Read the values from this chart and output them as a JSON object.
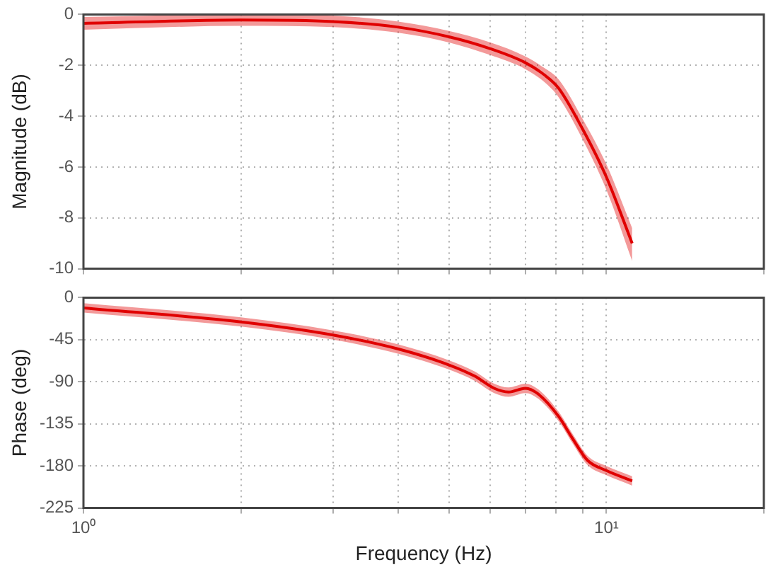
{
  "chart_data": [
    {
      "type": "line",
      "ylabel": "Magnitude (dB)",
      "x": [
        1,
        2,
        3,
        4,
        5,
        6,
        7,
        7.6,
        8.1,
        9,
        10,
        11.2
      ],
      "series": [
        {
          "color": "#e00000",
          "values": [
            -0.35,
            -0.22,
            -0.28,
            -0.5,
            -0.88,
            -1.35,
            -1.9,
            -2.37,
            -2.9,
            -4.5,
            -6.4,
            -9.0
          ],
          "lower": [
            -0.6,
            -0.45,
            -0.5,
            -0.72,
            -1.1,
            -1.6,
            -2.15,
            -2.65,
            -3.25,
            -4.9,
            -6.9,
            -9.7
          ],
          "upper": [
            -0.1,
            0.0,
            -0.05,
            -0.28,
            -0.65,
            -1.1,
            -1.65,
            -2.1,
            -2.55,
            -4.1,
            -5.9,
            -8.4
          ]
        }
      ],
      "log": "x",
      "xlim": [
        1,
        20
      ],
      "xticks": [
        {
          "value": 1,
          "label": null
        },
        {
          "value": 2,
          "label": null
        },
        {
          "value": 3,
          "label": null
        },
        {
          "value": 4,
          "label": null
        },
        {
          "value": 5,
          "label": null
        },
        {
          "value": 6,
          "label": null
        },
        {
          "value": 7,
          "label": null
        },
        {
          "value": 8,
          "label": null
        },
        {
          "value": 9,
          "label": null
        },
        {
          "value": 10,
          "label": null
        },
        {
          "value": 20,
          "label": null
        }
      ],
      "ylim": [
        -10,
        0
      ],
      "yticks": [
        -10,
        -8,
        -6,
        -4,
        -2,
        0
      ],
      "grid": true,
      "legend": false,
      "tick_labels": "y",
      "line_style": "solid",
      "marker": "none"
    },
    {
      "type": "line",
      "xlabel": "Frequency (Hz)",
      "ylabel": "Phase (deg)",
      "x": [
        1,
        2,
        3,
        4,
        5,
        5.6,
        6.1,
        6.5,
        7,
        7.4,
        8.1,
        8.6,
        9.2,
        10,
        11.2
      ],
      "series": [
        {
          "color": "#e00000",
          "values": [
            -11,
            -26,
            -40,
            -55,
            -72,
            -84,
            -97,
            -101,
            -97,
            -103,
            -127,
            -150,
            -174,
            -185,
            -196
          ],
          "lower": [
            -16,
            -31,
            -45,
            -60,
            -77,
            -89,
            -102,
            -106,
            -102,
            -108,
            -132,
            -155,
            -179,
            -190,
            -201
          ],
          "upper": [
            -6,
            -21,
            -35,
            -50,
            -67,
            -79,
            -92,
            -96,
            -92,
            -98,
            -122,
            -145,
            -169,
            -180,
            -191
          ]
        }
      ],
      "log": "x",
      "xlim": [
        1,
        20
      ],
      "xticks": [
        {
          "value": 1,
          "label": "10⁰"
        },
        {
          "value": 2,
          "label": null
        },
        {
          "value": 3,
          "label": null
        },
        {
          "value": 4,
          "label": null
        },
        {
          "value": 5,
          "label": null
        },
        {
          "value": 6,
          "label": null
        },
        {
          "value": 7,
          "label": null
        },
        {
          "value": 8,
          "label": null
        },
        {
          "value": 9,
          "label": null
        },
        {
          "value": 10,
          "label": "10¹"
        },
        {
          "value": 20,
          "label": null
        }
      ],
      "ylim": [
        -225,
        0
      ],
      "yticks": [
        -225,
        -180,
        -135,
        -90,
        -45,
        0
      ],
      "grid": true,
      "legend": false,
      "line_style": "solid",
      "marker": "none"
    }
  ]
}
